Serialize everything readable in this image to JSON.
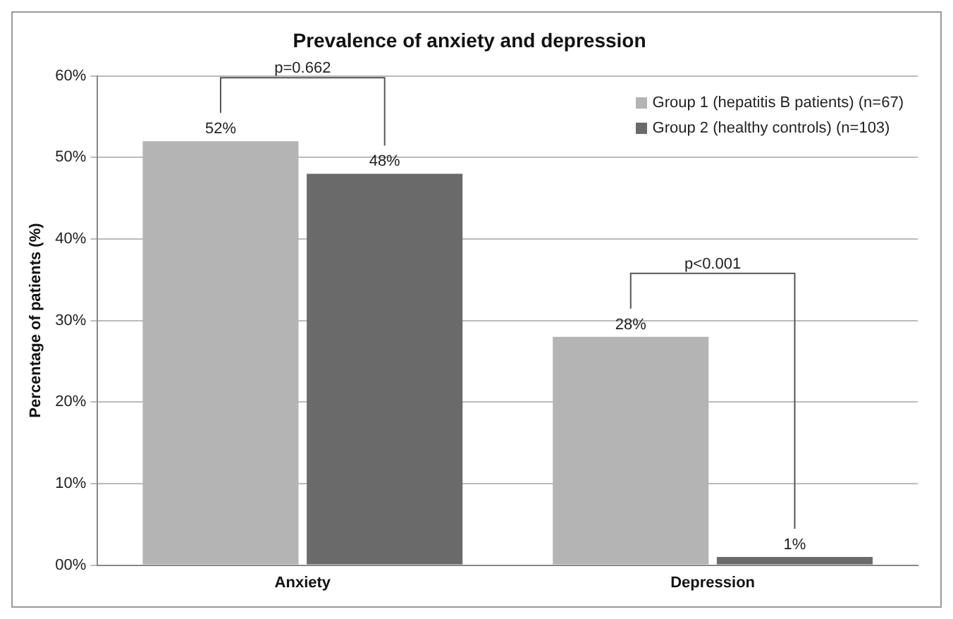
{
  "chart_data": {
    "type": "bar",
    "title": "Prevalence of anxiety and depression",
    "ylabel": "Percentage of patients (%)",
    "categories": [
      "Anxiety",
      "Depression"
    ],
    "series": [
      {
        "name": "Group 1 (hepatitis B patients) (n=67)",
        "color": "#b4b4b4",
        "values": [
          52,
          28
        ],
        "value_labels": [
          "52%",
          "28%"
        ]
      },
      {
        "name": "Group 2 (healthy controls) (n=103)",
        "color": "#6a6a6a",
        "values": [
          48,
          1
        ],
        "value_labels": [
          "48%",
          "1%"
        ]
      }
    ],
    "ylim": [
      0,
      60
    ],
    "yticks": [
      {
        "value": 0,
        "label": "00%"
      },
      {
        "value": 10,
        "label": "10%"
      },
      {
        "value": 20,
        "label": "20%"
      },
      {
        "value": 30,
        "label": "30%"
      },
      {
        "value": 40,
        "label": "40%"
      },
      {
        "value": 50,
        "label": "50%"
      },
      {
        "value": 60,
        "label": "60%"
      }
    ],
    "annotations": [
      "p=0.662",
      "p<0.001"
    ],
    "grid": "y",
    "legend": "top right"
  }
}
